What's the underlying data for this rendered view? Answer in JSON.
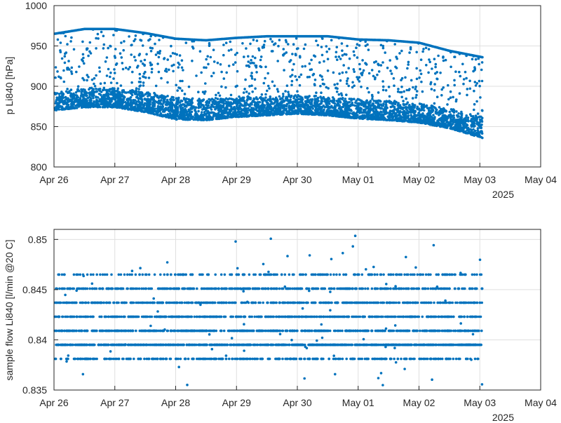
{
  "chart_data": [
    {
      "type": "scatter",
      "title": "",
      "xlabel": "",
      "ylabel": "p Li840 [hPa]",
      "x_ticks": [
        "Apr 26",
        "Apr 27",
        "Apr 28",
        "Apr 29",
        "Apr 30",
        "May 01",
        "May 02",
        "May 03",
        "May 04"
      ],
      "x_year_label": "2025",
      "xlim": [
        "2025-04-26",
        "2025-05-04"
      ],
      "ylim": [
        800,
        1000
      ],
      "y_ticks": [
        800,
        850,
        900,
        950,
        1000
      ],
      "grid": true,
      "marker_color": "#0072BD",
      "series": [
        {
          "name": "",
          "upper_envelope": {
            "x": [
              "2025-04-26",
              "2025-04-26T12:00",
              "2025-04-27",
              "2025-04-27T12:00",
              "2025-04-28",
              "2025-04-28T12:00",
              "2025-04-29",
              "2025-04-29T12:00",
              "2025-04-30",
              "2025-04-30T12:00",
              "2025-05-01",
              "2025-05-01T12:00",
              "2025-05-02",
              "2025-05-02T12:00",
              "2025-05-03T01:00"
            ],
            "y": [
              965,
              971,
              971,
              966,
              959,
              957,
              960,
              962,
              962,
              962,
              958,
              957,
              954,
              944,
              936
            ]
          },
          "dense_band_low": {
            "x": [
              "2025-04-26",
              "2025-04-26T12:00",
              "2025-04-27",
              "2025-04-27T12:00",
              "2025-04-28",
              "2025-04-28T12:00",
              "2025-04-29",
              "2025-04-29T12:00",
              "2025-04-30",
              "2025-04-30T12:00",
              "2025-05-01",
              "2025-05-01T12:00",
              "2025-05-02",
              "2025-05-02T12:00",
              "2025-05-03T01:00"
            ],
            "y": [
              870,
              874,
              874,
              868,
              859,
              858,
              862,
              864,
              866,
              864,
              860,
              858,
              855,
              848,
              836
            ]
          },
          "dense_band_high": {
            "x": [
              "2025-04-26",
              "2025-04-26T12:00",
              "2025-04-27",
              "2025-04-27T12:00",
              "2025-04-28",
              "2025-04-28T12:00",
              "2025-04-29",
              "2025-04-29T12:00",
              "2025-04-30",
              "2025-04-30T12:00",
              "2025-05-01",
              "2025-05-01T12:00",
              "2025-05-02",
              "2025-05-02T12:00",
              "2025-05-03T01:00"
            ],
            "y": [
              893,
              898,
              898,
              894,
              886,
              884,
              886,
              887,
              889,
              887,
              884,
              882,
              879,
              872,
              862
            ]
          }
        }
      ]
    },
    {
      "type": "scatter",
      "title": "",
      "xlabel": "",
      "ylabel": "sample flow Li840 [l/min @20 C]",
      "x_ticks": [
        "Apr 26",
        "Apr 27",
        "Apr 28",
        "Apr 29",
        "Apr 30",
        "May 01",
        "May 02",
        "May 03",
        "May 04"
      ],
      "x_year_label": "2025",
      "xlim": [
        "2025-04-26",
        "2025-05-04"
      ],
      "ylim": [
        0.835,
        0.851
      ],
      "y_ticks": [
        0.835,
        0.84,
        0.845,
        0.85
      ],
      "y_tick_labels": [
        "0.835",
        "0.84",
        "0.845",
        "0.85"
      ],
      "grid": true,
      "marker_color": "#0072BD",
      "series": [
        {
          "name": "",
          "quantized_levels": [
            0.8381,
            0.8395,
            0.8409,
            0.8423,
            0.8437,
            0.8451,
            0.8465
          ],
          "level_weights": [
            0.1,
            0.26,
            0.17,
            0.14,
            0.13,
            0.13,
            0.07
          ],
          "x_range": [
            "2025-04-26",
            "2025-05-03T01:00"
          ]
        }
      ]
    }
  ]
}
